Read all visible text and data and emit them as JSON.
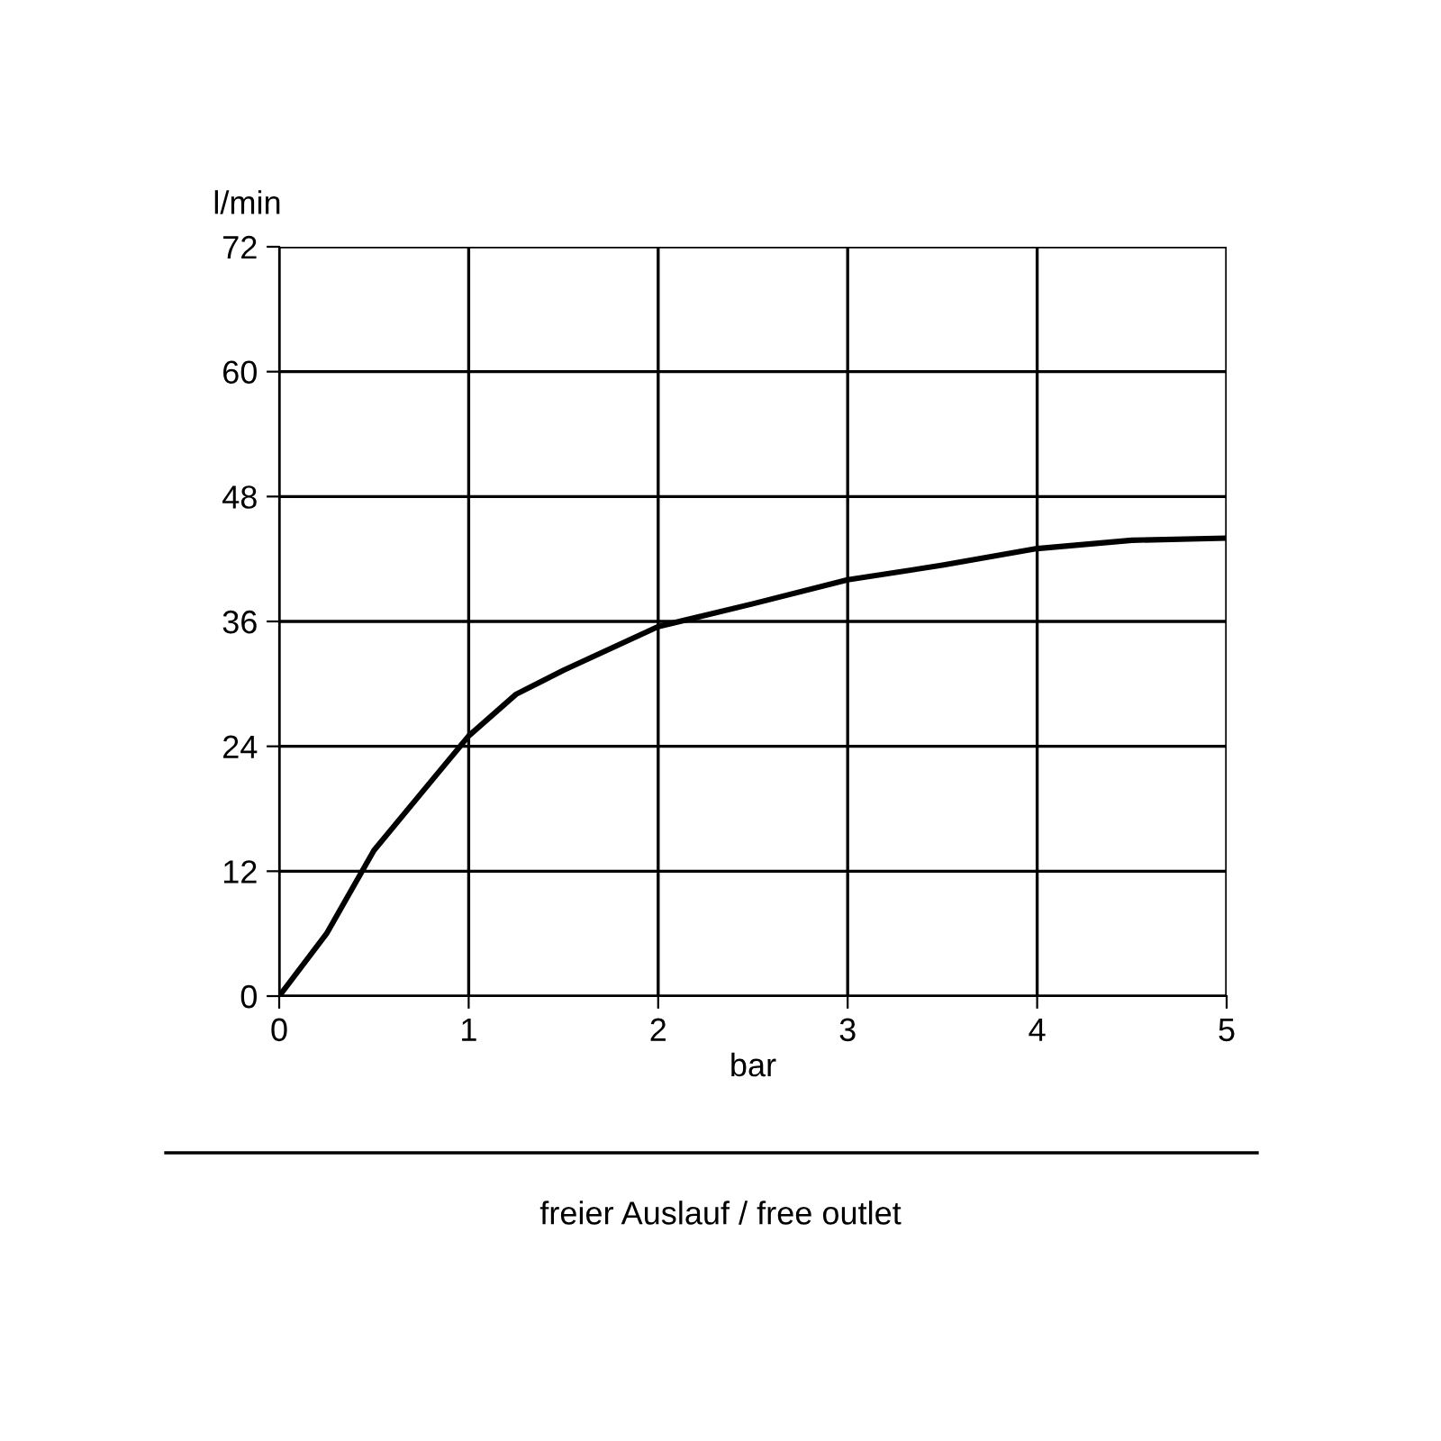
{
  "chart_data": {
    "type": "line",
    "xlabel": "bar",
    "ylabel": "l/min",
    "annotations": [
      "freier Auslauf / free outlet"
    ],
    "x": [
      0,
      0.25,
      0.5,
      0.75,
      1,
      1.25,
      1.5,
      2,
      2.5,
      3,
      3.5,
      4,
      4.5,
      5
    ],
    "series": [
      {
        "color": "#000000",
        "values": [
          0,
          6,
          14,
          19.5,
          25,
          29,
          31.3,
          35.5,
          37.7,
          40,
          41.4,
          43,
          43.8,
          44
        ]
      }
    ],
    "xlim": [
      0,
      5
    ],
    "xticks": [
      0,
      1,
      2,
      3,
      4,
      5
    ],
    "ylim": [
      0,
      72
    ],
    "yticks": [
      0,
      12,
      24,
      36,
      48,
      60,
      72
    ],
    "grid": true,
    "marker": "none",
    "line_style": "solid"
  }
}
